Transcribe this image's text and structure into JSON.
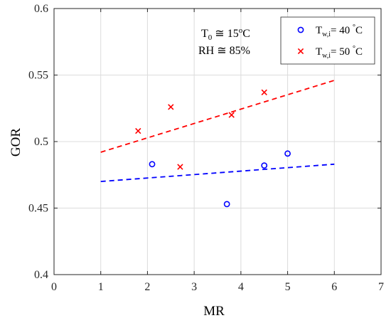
{
  "chart_data": {
    "type": "scatter",
    "xlabel": "MR",
    "ylabel": "GOR",
    "xlim": [
      0,
      7
    ],
    "ylim": [
      0.4,
      0.6
    ],
    "xticks": [
      0,
      1,
      2,
      3,
      4,
      5,
      6,
      7
    ],
    "yticks": [
      0.4,
      0.45,
      0.5,
      0.55,
      0.6
    ],
    "xtick_labels": [
      "0",
      "1",
      "2",
      "3",
      "4",
      "5",
      "6",
      "7"
    ],
    "ytick_labels": [
      "0.4",
      "0.45",
      "0.5",
      "0.55",
      "0.6"
    ],
    "grid": true,
    "legend_position": "top-right",
    "annotation": {
      "line1": {
        "main": "T",
        "sub": "0",
        "rest": " ≅ 15",
        "sup": "o",
        "end": "C"
      },
      "line2": "RH ≅ 85%"
    },
    "series": [
      {
        "name": "T_w,i = 40 °C",
        "legend": {
          "main": "T",
          "sub": "w,i",
          "mid": "= 40 ",
          "sup": "°",
          "end": "C"
        },
        "marker": "circle",
        "color": "#0000ff",
        "points": [
          [
            2.1,
            0.483
          ],
          [
            3.7,
            0.453
          ],
          [
            4.5,
            0.482
          ],
          [
            5.0,
            0.491
          ]
        ],
        "fit": {
          "style": "dashed",
          "x": [
            1,
            6
          ],
          "y": [
            0.47,
            0.483
          ]
        }
      },
      {
        "name": "T_w,i = 50 °C",
        "legend": {
          "main": "T",
          "sub": "w,i",
          "mid": "= 50 ",
          "sup": "°",
          "end": "C"
        },
        "marker": "x",
        "color": "#ff0000",
        "points": [
          [
            1.8,
            0.508
          ],
          [
            2.5,
            0.526
          ],
          [
            2.7,
            0.481
          ],
          [
            3.8,
            0.52
          ],
          [
            4.5,
            0.537
          ]
        ],
        "fit": {
          "style": "dashed",
          "x": [
            1,
            6
          ],
          "y": [
            0.492,
            0.546
          ]
        }
      }
    ]
  }
}
